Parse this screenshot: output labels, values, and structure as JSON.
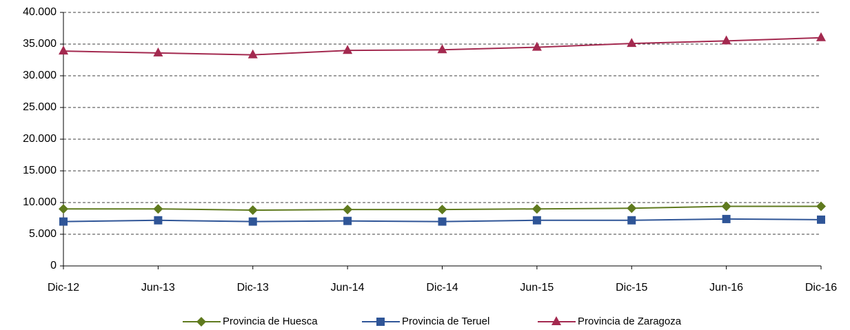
{
  "chart_data": {
    "type": "line",
    "categories": [
      "Dic-12",
      "Jun-13",
      "Dic-13",
      "Jun-14",
      "Dic-14",
      "Jun-15",
      "Dic-15",
      "Jun-16",
      "Dic-16"
    ],
    "series": [
      {
        "name": "Provincia de Huesca",
        "color": "#5f7a1e",
        "marker": "diamond",
        "values": [
          9000,
          9000,
          8800,
          8900,
          8900,
          9000,
          9100,
          9400,
          9400
        ]
      },
      {
        "name": "Provincia de Teruel",
        "color": "#2f5597",
        "marker": "square",
        "values": [
          7000,
          7200,
          7000,
          7100,
          7000,
          7200,
          7200,
          7400,
          7300
        ]
      },
      {
        "name": "Provincia de Zaragoza",
        "color": "#a3294f",
        "marker": "triangle",
        "values": [
          33900,
          33600,
          33300,
          34000,
          34100,
          34500,
          35100,
          35500,
          36000
        ]
      }
    ],
    "ylim": [
      0,
      40000
    ],
    "yticks": [
      0,
      {
        "value": 5000,
        "label": "5.000"
      },
      {
        "value": 10000,
        "label": "10.000"
      },
      {
        "value": 15000,
        "label": "15.000"
      },
      {
        "value": 20000,
        "label": "20.000"
      },
      {
        "value": 25000,
        "label": "25.000"
      },
      {
        "value": 30000,
        "label": "30.000"
      },
      {
        "value": 35000,
        "label": "35.000"
      },
      {
        "value": 40000,
        "label": "40.000"
      }
    ],
    "grid": true,
    "legend": "bottom"
  }
}
